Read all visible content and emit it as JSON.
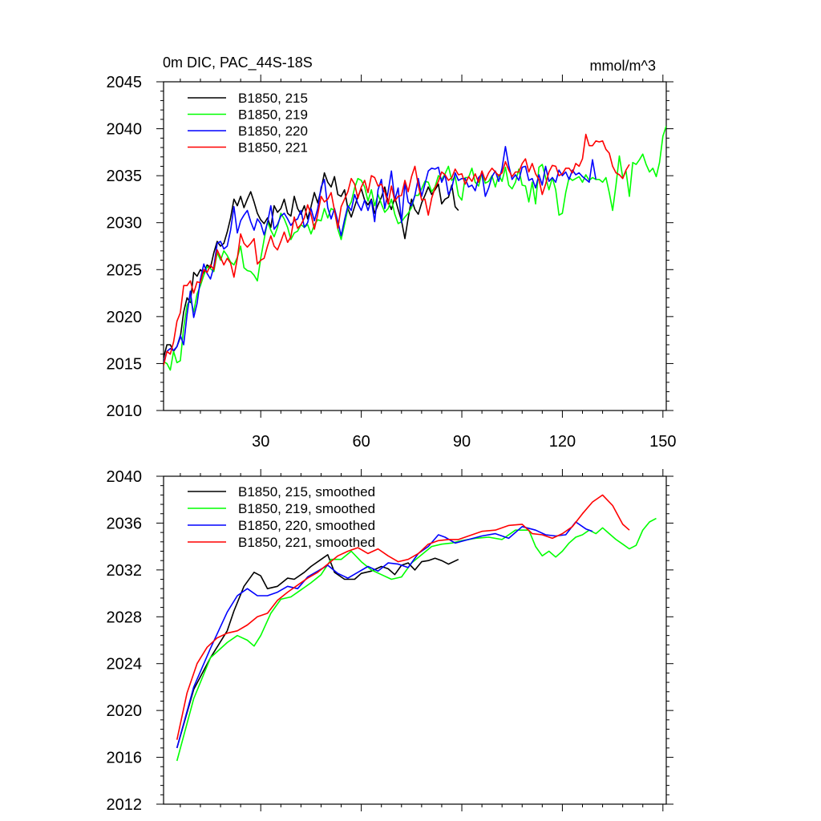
{
  "chart_data": [
    {
      "type": "line",
      "title": "0m DIC, PAC_44S-18S",
      "units": "mmol/m^3",
      "xlim": [
        1,
        151
      ],
      "ylim": [
        2010,
        2045
      ],
      "x_ticks": [
        30,
        60,
        90,
        120,
        150
      ],
      "y_ticks": [
        2010,
        2015,
        2020,
        2025,
        2030,
        2035,
        2040,
        2045
      ],
      "x_tick_labels": [
        "30",
        "60",
        "90",
        "120",
        "150"
      ],
      "y_tick_labels": [
        "2010",
        "2015",
        "2020",
        "2025",
        "2030",
        "2035",
        "2040",
        "2045"
      ],
      "legend_position": "top-left",
      "series": [
        {
          "name": "B1850, 215",
          "color": "#000000",
          "x_start": 1,
          "values": [
            2015.6,
            2017.0,
            2017.0,
            2016.3,
            2016.8,
            2017.8,
            2020.5,
            2022.0,
            2021.5,
            2024.7,
            2024.3,
            2025.0,
            2024.6,
            2025.5,
            2025.2,
            2026.8,
            2028.0,
            2027.5,
            2027.8,
            2029.0,
            2030.5,
            2032.5,
            2031.8,
            2032.8,
            2031.6,
            2032.5,
            2033.3,
            2032.2,
            2031.0,
            2030.3,
            2029.9,
            2030.5,
            2029.5,
            2031.8,
            2031.1,
            2031.5,
            2032.5,
            2031.0,
            2030.7,
            2032.8,
            2031.5,
            2030.9,
            2031.8,
            2030.4,
            2031.7,
            2033.2,
            2032.1,
            2033.5,
            2035.3,
            2034.3,
            2033.8,
            2034.9,
            2033.0,
            2032.8,
            2033.5,
            2031.5,
            2030.6,
            2031.7,
            2032.8,
            2033.6,
            2032.4,
            2031.9,
            2032.5,
            2031.0,
            2031.9,
            2032.7,
            2033.8,
            2032.2,
            2031.4,
            2032.7,
            2031.4,
            2030.2,
            2028.3,
            2030.5,
            2032.5,
            2031.4,
            2030.9,
            2032.1,
            2032.9,
            2033.8,
            2033.0,
            2033.5,
            2034.1,
            2032.0,
            2032.5,
            2032.7,
            2034.0,
            2031.7,
            2031.3
          ]
        },
        {
          "name": "B1850, 219",
          "color": "#00ff00",
          "x_start": 1,
          "values": [
            2015.2,
            2015.0,
            2014.3,
            2016.3,
            2015.1,
            2015.3,
            2018.8,
            2021.2,
            2021.9,
            2020.5,
            2022.4,
            2023.3,
            2024.4,
            2025.3,
            2025.1,
            2024.8,
            2026.8,
            2026.0,
            2027.0,
            2026.5,
            2025.8,
            2025.5,
            2026.3,
            2027.5,
            2025.2,
            2024.9,
            2024.8,
            2024.4,
            2023.8,
            2026.2,
            2028.2,
            2030.1,
            2029.2,
            2028.5,
            2029.5,
            2031.0,
            2030.4,
            2029.5,
            2028.2,
            2028.9,
            2029.1,
            2029.8,
            2029.5,
            2029.8,
            2028.8,
            2029.8,
            2030.3,
            2030.2,
            2031.5,
            2030.5,
            2031.5,
            2031.3,
            2029.3,
            2028.2,
            2029.8,
            2031.5,
            2032.2,
            2033.7,
            2034.7,
            2034.5,
            2033.8,
            2032.3,
            2033.5,
            2031.8,
            2033.0,
            2032.0,
            2031.1,
            2031.5,
            2032.5,
            2030.9,
            2029.9,
            2030.1,
            2030.6,
            2031.0,
            2031.6,
            2032.9,
            2032.9,
            2033.6,
            2034.4,
            2034.3,
            2033.3,
            2033.8,
            2035.0,
            2034.6,
            2035.2,
            2036.0,
            2034.5,
            2034.9,
            2032.9,
            2032.4,
            2034.8,
            2034.8,
            2035.8,
            2034.3,
            2033.9,
            2035.3,
            2034.2,
            2034.4,
            2035.0,
            2033.8,
            2035.1,
            2034.4,
            2035.9,
            2034.0,
            2033.6,
            2034.3,
            2035.7,
            2034.0,
            2033.9,
            2032.2,
            2034.3,
            2032.0,
            2035.9,
            2036.2,
            2034.8,
            2033.5,
            2034.8,
            2033.5,
            2030.8,
            2031.0,
            2033.2,
            2034.8,
            2034.5,
            2034.7,
            2034.9,
            2034.3,
            2035.1,
            2034.5,
            2034.8,
            2034.6,
            2034.6,
            2034.3,
            2034.8,
            2033.2,
            2031.3,
            2034.0,
            2037.1,
            2034.8,
            2035.5,
            2032.8,
            2036.4,
            2036.2,
            2036.7,
            2037.3,
            2036.2,
            2035.4,
            2035.8,
            2034.9,
            2036.4,
            2039.2,
            2040.3
          ]
        },
        {
          "name": "B1850, 220",
          "color": "#0000ff",
          "x_start": 1,
          "values": [
            2015.0,
            2016.3,
            2016.6,
            2016.4,
            2016.8,
            2018.0,
            2017.0,
            2020.2,
            2022.7,
            2019.9,
            2021.4,
            2024.0,
            2025.6,
            2024.6,
            2024.0,
            2025.3,
            2027.8,
            2028.0,
            2027.2,
            2027.5,
            2029.2,
            2031.7,
            2028.9,
            2030.2,
            2030.8,
            2031.3,
            2030.1,
            2029.2,
            2030.4,
            2029.9,
            2028.7,
            2030.0,
            2031.8,
            2029.3,
            2029.8,
            2030.7,
            2031.0,
            2030.4,
            2029.7,
            2030.2,
            2030.4,
            2031.3,
            2029.5,
            2030.0,
            2031.5,
            2030.2,
            2031.5,
            2033.8,
            2034.6,
            2031.6,
            2030.4,
            2031.5,
            2030.1,
            2028.6,
            2030.3,
            2031.8,
            2031.3,
            2033.0,
            2032.0,
            2031.3,
            2032.4,
            2031.3,
            2032.4,
            2030.1,
            2033.5,
            2034.6,
            2031.5,
            2033.3,
            2035.5,
            2032.4,
            2033.7,
            2030.0,
            2034.2,
            2032.2,
            2031.8,
            2032.9,
            2034.7,
            2032.8,
            2034.1,
            2035.5,
            2035.8,
            2035.7,
            2035.9,
            2034.3,
            2035.1,
            2033.0,
            2033.7,
            2035.3,
            2034.5,
            2034.7,
            2034.7,
            2033.8,
            2034.0,
            2033.4,
            2034.8,
            2035.2,
            2032.8,
            2033.7,
            2034.9,
            2035.5,
            2034.4,
            2035.8,
            2038.1,
            2036.1,
            2034.6,
            2035.1,
            2034.5,
            2035.9,
            2036.0,
            2034.5,
            2034.7,
            2033.7,
            2035.1,
            2034.0,
            2036.0,
            2034.4,
            2034.8,
            2034.3,
            2035.6,
            2035.0,
            2035.4,
            2034.6,
            2035.6,
            2035.1,
            2035.3,
            2034.9,
            2034.6,
            2034.3,
            2036.7,
            2034.6
          ]
        },
        {
          "name": "B1850, 221",
          "color": "#ff0000",
          "x_start": 1,
          "values": [
            2014.8,
            2016.3,
            2016.0,
            2017.3,
            2019.5,
            2020.4,
            2023.3,
            2023.3,
            2023.8,
            2022.5,
            2023.7,
            2023.6,
            2025.0,
            2024.7,
            2025.5,
            2025.0,
            2027.1,
            2026.3,
            2025.5,
            2026.2,
            2025.7,
            2024.2,
            2026.2,
            2028.8,
            2027.8,
            2027.4,
            2027.8,
            2028.3,
            2025.6,
            2026.0,
            2026.2,
            2027.5,
            2028.6,
            2027.5,
            2027.1,
            2028.0,
            2029.0,
            2027.9,
            2028.5,
            2030.6,
            2029.4,
            2029.8,
            2030.5,
            2031.9,
            2030.9,
            2029.3,
            2030.9,
            2032.8,
            2032.2,
            2032.5,
            2033.2,
            2031.3,
            2029.4,
            2031.7,
            2032.5,
            2033.3,
            2034.7,
            2034.1,
            2032.6,
            2033.8,
            2034.5,
            2033.2,
            2035.0,
            2034.8,
            2033.9,
            2034.1,
            2033.3,
            2032.0,
            2033.9,
            2032.3,
            2032.8,
            2032.9,
            2034.5,
            2033.3,
            2034.9,
            2036.0,
            2034.0,
            2032.4,
            2032.5,
            2030.8,
            2032.6,
            2033.7,
            2034.4,
            2035.4,
            2035.1,
            2034.5,
            2034.8,
            2035.7,
            2035.1,
            2035.2,
            2034.1,
            2034.9,
            2034.4,
            2035.2,
            2034.3,
            2035.5,
            2034.5,
            2035.3,
            2035.8,
            2035.4,
            2035.0,
            2035.3,
            2036.5,
            2035.6,
            2034.9,
            2035.4,
            2035.4,
            2036.3,
            2036.8,
            2035.4,
            2036.3,
            2035.2,
            2034.6,
            2033.0,
            2034.1,
            2035.4,
            2036.1,
            2036.0,
            2035.0,
            2035.2,
            2035.8,
            2035.8,
            2035.3,
            2036.3,
            2036.0,
            2036.8,
            2039.4,
            2038.2,
            2038.2,
            2038.7,
            2038.6,
            2038.7,
            2037.8,
            2037.4,
            2036.0,
            2035.3,
            2035.1,
            2034.7,
            2035.6,
            2036.2
          ]
        }
      ]
    },
    {
      "type": "line",
      "title": "",
      "xlim": [
        1,
        151
      ],
      "ylim": [
        2012,
        2040
      ],
      "x_ticks": [
        30,
        60,
        90,
        120,
        150
      ],
      "y_ticks": [
        2012,
        2016,
        2020,
        2024,
        2028,
        2032,
        2036,
        2040
      ],
      "y_tick_labels": [
        "2012",
        "2016",
        "2020",
        "2024",
        "2028",
        "2032",
        "2036",
        "2040"
      ],
      "legend_position": "top-left",
      "series": [
        {
          "name": "B1850, 215, smoothed",
          "color": "#000000",
          "x": [
            5,
            10,
            15,
            20,
            22,
            25,
            28,
            30,
            32,
            35,
            38,
            40,
            43,
            45,
            48,
            50,
            52,
            55,
            58,
            60,
            63,
            66,
            68,
            70,
            72,
            74,
            76,
            78,
            80,
            82,
            84,
            86,
            89
          ],
          "values": [
            2016.8,
            2021.8,
            2024.5,
            2026.8,
            2028.5,
            2030.6,
            2031.8,
            2031.5,
            2030.4,
            2030.6,
            2031.3,
            2031.2,
            2031.8,
            2032.3,
            2032.9,
            2033.3,
            2031.8,
            2031.2,
            2031.2,
            2031.7,
            2031.9,
            2032.3,
            2032.1,
            2031.6,
            2032.4,
            2032.6,
            2032.0,
            2032.7,
            2032.8,
            2033.0,
            2032.8,
            2032.5,
            2032.9
          ]
        },
        {
          "name": "B1850, 219, smoothed",
          "color": "#00ff00",
          "x": [
            5,
            10,
            15,
            20,
            23,
            26,
            28,
            30,
            33,
            36,
            39,
            42,
            45,
            48,
            51,
            54,
            57,
            60,
            63,
            66,
            69,
            72,
            75,
            78,
            81,
            84,
            87,
            90,
            94,
            98,
            102,
            106,
            110,
            112,
            114,
            116,
            118,
            120,
            122,
            124,
            126,
            128,
            130,
            132,
            134,
            136,
            138,
            140,
            142,
            144,
            146,
            148
          ],
          "values": [
            2015.7,
            2021.0,
            2024.5,
            2025.8,
            2026.4,
            2026.0,
            2025.5,
            2026.4,
            2028.3,
            2029.5,
            2029.7,
            2030.3,
            2030.9,
            2031.6,
            2032.9,
            2032.9,
            2033.6,
            2032.7,
            2032.0,
            2031.6,
            2031.2,
            2031.4,
            2032.6,
            2033.3,
            2034.0,
            2034.2,
            2034.3,
            2034.5,
            2034.7,
            2034.8,
            2034.6,
            2035.4,
            2035.4,
            2034.0,
            2033.2,
            2033.6,
            2033.1,
            2033.6,
            2034.3,
            2034.8,
            2035.0,
            2035.4,
            2035.1,
            2035.6,
            2035.1,
            2034.6,
            2034.2,
            2033.8,
            2034.1,
            2035.4,
            2036.1,
            2036.4
          ]
        },
        {
          "name": "B1850, 220, smoothed",
          "color": "#0000ff",
          "x": [
            5,
            10,
            15,
            20,
            23,
            26,
            29,
            32,
            35,
            38,
            41,
            44,
            47,
            50,
            53,
            56,
            59,
            62,
            65,
            68,
            71,
            74,
            77,
            80,
            83,
            85,
            88,
            92,
            96,
            100,
            104,
            108,
            112,
            115,
            118,
            121,
            124,
            127,
            129
          ],
          "values": [
            2016.8,
            2022.0,
            2025.3,
            2028.4,
            2029.8,
            2030.4,
            2029.8,
            2029.8,
            2030.1,
            2030.6,
            2030.4,
            2031.4,
            2031.9,
            2032.4,
            2031.7,
            2031.3,
            2031.8,
            2032.3,
            2031.9,
            2032.6,
            2032.5,
            2032.2,
            2033.4,
            2034.0,
            2035.0,
            2034.8,
            2034.3,
            2034.6,
            2034.9,
            2035.1,
            2034.7,
            2035.7,
            2035.4,
            2035.0,
            2034.9,
            2035.0,
            2036.1,
            2035.5,
            2035.3
          ]
        },
        {
          "name": "B1850, 221, smoothed",
          "color": "#ff0000",
          "x": [
            5,
            8,
            11,
            14,
            17,
            20,
            23,
            26,
            29,
            32,
            35,
            38,
            41,
            44,
            47,
            50,
            53,
            56,
            59,
            62,
            65,
            68,
            71,
            74,
            77,
            80,
            83,
            86,
            89,
            92,
            96,
            100,
            104,
            108,
            111,
            114,
            117,
            120,
            123,
            126,
            129,
            132,
            135,
            138,
            140
          ],
          "values": [
            2017.5,
            2021.5,
            2024.0,
            2025.4,
            2026.2,
            2026.6,
            2026.8,
            2027.3,
            2028.0,
            2028.3,
            2029.4,
            2030.1,
            2030.7,
            2031.3,
            2031.8,
            2032.5,
            2033.2,
            2033.6,
            2033.9,
            2033.4,
            2033.8,
            2033.2,
            2032.7,
            2032.9,
            2033.4,
            2034.2,
            2034.5,
            2034.6,
            2034.6,
            2034.9,
            2035.3,
            2035.4,
            2035.8,
            2035.9,
            2035.1,
            2035.0,
            2034.7,
            2035.1,
            2035.7,
            2036.8,
            2037.8,
            2038.4,
            2037.5,
            2035.9,
            2035.4
          ]
        }
      ]
    }
  ]
}
